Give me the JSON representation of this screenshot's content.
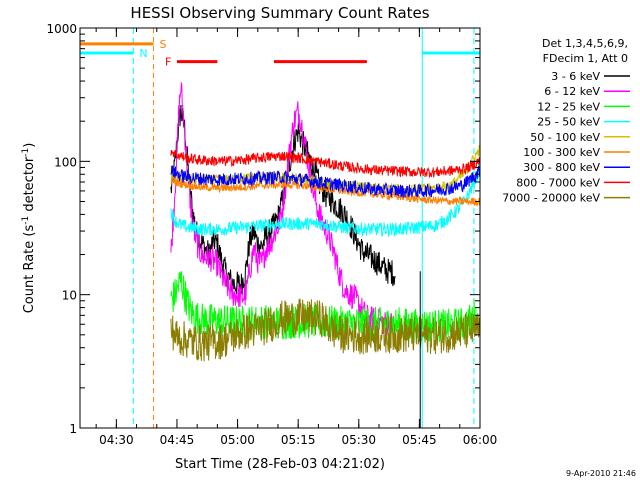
{
  "chart_data": {
    "type": "line",
    "title": "HESSI Observing Summary Count Rates",
    "xlabel": "Start Time (28-Feb-03 04:21:02)",
    "ylabel_main": "Count Rate (s",
    "ylabel_sup1": "-1",
    "ylabel_mid": " detector",
    "ylabel_sup2": "-1",
    "ylabel_end": ")",
    "yscale": "log",
    "ylim": [
      1,
      1000
    ],
    "xlim_minutes": [
      0,
      99
    ],
    "x_ticks": [
      {
        "label": "04:30",
        "minutes": 9
      },
      {
        "label": "04:45",
        "minutes": 24
      },
      {
        "label": "05:00",
        "minutes": 39
      },
      {
        "label": "05:15",
        "minutes": 54
      },
      {
        "label": "05:30",
        "minutes": 69
      },
      {
        "label": "05:45",
        "minutes": 84
      },
      {
        "label": "06:00",
        "minutes": 99
      }
    ],
    "y_ticks": [
      {
        "label": "1",
        "value": 1
      },
      {
        "label": "10",
        "value": 10
      },
      {
        "label": "100",
        "value": 100
      },
      {
        "label": "1000",
        "value": 1000
      }
    ],
    "legend_header": [
      "Det 1,3,4,5,6,9,",
      "FDecim 1, Att 0"
    ],
    "legend_placement": "right",
    "series": [
      {
        "name": "3 - 6 keV",
        "color": "#000000",
        "points": [
          [
            22.5,
            60
          ],
          [
            23.5,
            95
          ],
          [
            24.5,
            200
          ],
          [
            25,
            240
          ],
          [
            26,
            170
          ],
          [
            27,
            70
          ],
          [
            28,
            40
          ],
          [
            29,
            28
          ],
          [
            30,
            25
          ],
          [
            31,
            22
          ],
          [
            32,
            20
          ],
          [
            33,
            26
          ],
          [
            34,
            24
          ],
          [
            35,
            18
          ],
          [
            36,
            15
          ],
          [
            37,
            13
          ],
          [
            38,
            12
          ],
          [
            39,
            12
          ],
          [
            40,
            12
          ],
          [
            41,
            15
          ],
          [
            42,
            25
          ],
          [
            43,
            30
          ],
          [
            44,
            24
          ],
          [
            45,
            23
          ],
          [
            46,
            27
          ],
          [
            47,
            30
          ],
          [
            48,
            33
          ],
          [
            49,
            38
          ],
          [
            50,
            50
          ],
          [
            51,
            70
          ],
          [
            52,
            100
          ],
          [
            53,
            140
          ],
          [
            54,
            170
          ],
          [
            55,
            140
          ],
          [
            56,
            120
          ],
          [
            57,
            100
          ],
          [
            58,
            85
          ],
          [
            59,
            70
          ],
          [
            60,
            62
          ],
          [
            61,
            55
          ],
          [
            62,
            52
          ],
          [
            63,
            48
          ],
          [
            64,
            45
          ],
          [
            65,
            42
          ],
          [
            66,
            38
          ],
          [
            67,
            33
          ],
          [
            68,
            28
          ],
          [
            69,
            24
          ],
          [
            70,
            21
          ],
          [
            71,
            20
          ],
          [
            72,
            19
          ],
          [
            73,
            18
          ],
          [
            74,
            17
          ],
          [
            75,
            16
          ],
          [
            76,
            15
          ],
          [
            77,
            15
          ],
          [
            78,
            14
          ]
        ]
      },
      {
        "name": "6 - 12 keV",
        "color": "#ff00ff",
        "points": [
          [
            22.5,
            20
          ],
          [
            23.5,
            60
          ],
          [
            24.5,
            250
          ],
          [
            25,
            370
          ],
          [
            26,
            150
          ],
          [
            27,
            60
          ],
          [
            28,
            32
          ],
          [
            29,
            24
          ],
          [
            30,
            20
          ],
          [
            31,
            19
          ],
          [
            32,
            19
          ],
          [
            33,
            18
          ],
          [
            34,
            17
          ],
          [
            35,
            14
          ],
          [
            36,
            12
          ],
          [
            37,
            11
          ],
          [
            38,
            10
          ],
          [
            39,
            10
          ],
          [
            40,
            9.5
          ],
          [
            41,
            10
          ],
          [
            42,
            15
          ],
          [
            43,
            22
          ],
          [
            44,
            18
          ],
          [
            45,
            17
          ],
          [
            46,
            22
          ],
          [
            47,
            24
          ],
          [
            48,
            28
          ],
          [
            49,
            32
          ],
          [
            50,
            42
          ],
          [
            51,
            70
          ],
          [
            52,
            130
          ],
          [
            53,
            200
          ],
          [
            54,
            240
          ],
          [
            55,
            180
          ],
          [
            56,
            120
          ],
          [
            57,
            80
          ],
          [
            58,
            55
          ],
          [
            59,
            42
          ],
          [
            60,
            35
          ],
          [
            61,
            30
          ],
          [
            62,
            25
          ],
          [
            63,
            20
          ],
          [
            64,
            15
          ],
          [
            65,
            12
          ],
          [
            66,
            10.5
          ],
          [
            67,
            10
          ],
          [
            68,
            9.5
          ],
          [
            69,
            8.5
          ],
          [
            70,
            7.5
          ],
          [
            71,
            6.8
          ],
          [
            72,
            6.5
          ],
          [
            73,
            6.5
          ],
          [
            74,
            6.3
          ],
          [
            75,
            6.2
          ],
          [
            76,
            6
          ],
          [
            77,
            6
          ],
          [
            78,
            5.8
          ]
        ]
      },
      {
        "name": "12 - 25 keV",
        "color": "#00ff00",
        "points": [
          [
            22.5,
            9
          ],
          [
            23.5,
            10
          ],
          [
            24.5,
            12
          ],
          [
            25,
            13
          ],
          [
            26,
            10
          ],
          [
            27,
            8
          ],
          [
            28,
            7
          ],
          [
            30,
            6.5
          ],
          [
            35,
            6.3
          ],
          [
            40,
            6.2
          ],
          [
            45,
            6.3
          ],
          [
            50,
            6.2
          ],
          [
            55,
            6.3
          ],
          [
            60,
            6.2
          ],
          [
            65,
            6.1
          ],
          [
            70,
            6.1
          ],
          [
            75,
            6
          ],
          [
            80,
            6
          ],
          [
            84,
            5.8
          ],
          [
            85,
            5.9
          ],
          [
            90,
            5.8
          ],
          [
            95,
            6
          ],
          [
            97,
            6.5
          ],
          [
            98,
            7.5
          ]
        ]
      },
      {
        "name": "25 - 50 keV",
        "color": "#00ffff",
        "points": [
          [
            22.5,
            42
          ],
          [
            23.5,
            36
          ],
          [
            25,
            33
          ],
          [
            27,
            32
          ],
          [
            30,
            31
          ],
          [
            35,
            31
          ],
          [
            40,
            32
          ],
          [
            45,
            33
          ],
          [
            50,
            34
          ],
          [
            55,
            34
          ],
          [
            60,
            34
          ],
          [
            65,
            32
          ],
          [
            70,
            31
          ],
          [
            75,
            31
          ],
          [
            80,
            31
          ],
          [
            84,
            32
          ],
          [
            88,
            33
          ],
          [
            91,
            37
          ],
          [
            94,
            45
          ],
          [
            96,
            55
          ],
          [
            98,
            75
          ],
          [
            99,
            90
          ]
        ]
      },
      {
        "name": "50 - 100 keV",
        "color": "#d4c200",
        "points": [
          [
            22.5,
            78
          ],
          [
            25,
            75
          ],
          [
            30,
            73
          ],
          [
            35,
            72
          ],
          [
            40,
            74
          ],
          [
            45,
            76
          ],
          [
            50,
            76
          ],
          [
            55,
            73
          ],
          [
            60,
            69
          ],
          [
            65,
            66
          ],
          [
            70,
            64
          ],
          [
            75,
            63
          ],
          [
            80,
            62
          ],
          [
            84,
            62
          ],
          [
            88,
            63
          ],
          [
            92,
            67
          ],
          [
            95,
            80
          ],
          [
            97,
            100
          ],
          [
            99,
            125
          ]
        ]
      },
      {
        "name": "100 - 300 keV",
        "color": "#ff7f00",
        "points": [
          [
            22.5,
            72
          ],
          [
            25,
            68
          ],
          [
            30,
            64
          ],
          [
            35,
            63
          ],
          [
            40,
            64
          ],
          [
            45,
            66
          ],
          [
            50,
            67
          ],
          [
            55,
            66
          ],
          [
            60,
            63
          ],
          [
            65,
            60
          ],
          [
            70,
            58
          ],
          [
            75,
            56
          ],
          [
            80,
            54
          ],
          [
            84,
            52
          ],
          [
            88,
            51
          ],
          [
            92,
            50
          ],
          [
            96,
            50
          ],
          [
            99,
            50
          ]
        ]
      },
      {
        "name": "300 - 800 keV",
        "color": "#0000ff",
        "points": [
          [
            22.5,
            85
          ],
          [
            25,
            78
          ],
          [
            30,
            74
          ],
          [
            35,
            73
          ],
          [
            40,
            74
          ],
          [
            45,
            75
          ],
          [
            50,
            76
          ],
          [
            55,
            73
          ],
          [
            60,
            69
          ],
          [
            65,
            66
          ],
          [
            70,
            63
          ],
          [
            75,
            61
          ],
          [
            80,
            60
          ],
          [
            84,
            60
          ],
          [
            88,
            61
          ],
          [
            92,
            63
          ],
          [
            95,
            67
          ],
          [
            97,
            75
          ],
          [
            99,
            85
          ]
        ]
      },
      {
        "name": "800 - 7000 keV",
        "color": "#ff0000",
        "points": [
          [
            22.5,
            120
          ],
          [
            24,
            112
          ],
          [
            27,
            105
          ],
          [
            30,
            102
          ],
          [
            35,
            100
          ],
          [
            40,
            102
          ],
          [
            45,
            107
          ],
          [
            50,
            110
          ],
          [
            55,
            105
          ],
          [
            60,
            98
          ],
          [
            65,
            92
          ],
          [
            70,
            88
          ],
          [
            75,
            85
          ],
          [
            80,
            84
          ],
          [
            84,
            83
          ],
          [
            88,
            83
          ],
          [
            92,
            85
          ],
          [
            95,
            88
          ],
          [
            97,
            92
          ],
          [
            99,
            102
          ]
        ]
      },
      {
        "name": "7000 - 20000 keV",
        "color": "#8b7d00",
        "points": [
          [
            22.5,
            5.5
          ],
          [
            24,
            4.8
          ],
          [
            26,
            4.6
          ],
          [
            30,
            4.3
          ],
          [
            35,
            4.5
          ],
          [
            40,
            5.2
          ],
          [
            45,
            5.6
          ],
          [
            48,
            6.2
          ],
          [
            50,
            6.6
          ],
          [
            55,
            6.8
          ],
          [
            60,
            6.6
          ],
          [
            62,
            5.5
          ],
          [
            65,
            5.0
          ],
          [
            70,
            4.9
          ],
          [
            75,
            5.0
          ],
          [
            80,
            5.0
          ],
          [
            84,
            5.0
          ],
          [
            88,
            4.9
          ],
          [
            92,
            5.1
          ],
          [
            96,
            5.3
          ],
          [
            99,
            5.5
          ]
        ]
      }
    ],
    "annotations": {
      "N": {
        "label": "N",
        "color": "#00ffff",
        "level": 650,
        "segments": [
          [
            0,
            13.2
          ],
          [
            84.7,
            99
          ]
        ]
      },
      "S": {
        "label": "S",
        "color": "#ff7f00",
        "level": 760,
        "segments": [
          [
            0,
            18.2
          ]
        ]
      },
      "F": {
        "label": "F",
        "color": "#ff0000",
        "level": 560,
        "segments": [
          [
            24,
            34
          ],
          [
            48,
            71
          ]
        ]
      },
      "cyan_markers_minutes": [
        0,
        13.2,
        84.7,
        97.5
      ],
      "orange_marker_minutes": [
        18.2
      ]
    }
  },
  "footer": {
    "date_stamp": "9-Apr-2010 21:46"
  }
}
